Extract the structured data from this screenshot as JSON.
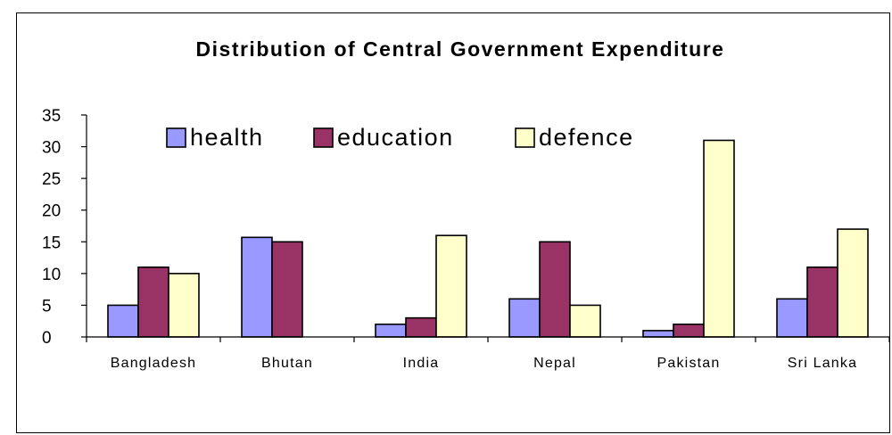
{
  "chart_data": {
    "type": "bar",
    "title": "Distribution of Central Government Expenditure",
    "xlabel": "",
    "ylabel": "",
    "ylim": [
      0,
      35
    ],
    "yticks": [
      "0",
      "5",
      "10",
      "15",
      "20",
      "25",
      "30",
      "35"
    ],
    "categories": [
      "Bangladesh",
      "Bhutan",
      "India",
      "Nepal",
      "Pakistan",
      "Sri Lanka"
    ],
    "series": [
      {
        "name": "health",
        "color": "#9999ff",
        "values": [
          5,
          15.7,
          2,
          6,
          1,
          6
        ]
      },
      {
        "name": "education",
        "color": "#993366",
        "values": [
          11,
          15,
          3,
          15,
          2,
          11
        ]
      },
      {
        "name": "defence",
        "color": "#ffffcc",
        "values": [
          10,
          null,
          16,
          5,
          31,
          17
        ]
      }
    ],
    "legend": "top-center",
    "grid": false
  }
}
